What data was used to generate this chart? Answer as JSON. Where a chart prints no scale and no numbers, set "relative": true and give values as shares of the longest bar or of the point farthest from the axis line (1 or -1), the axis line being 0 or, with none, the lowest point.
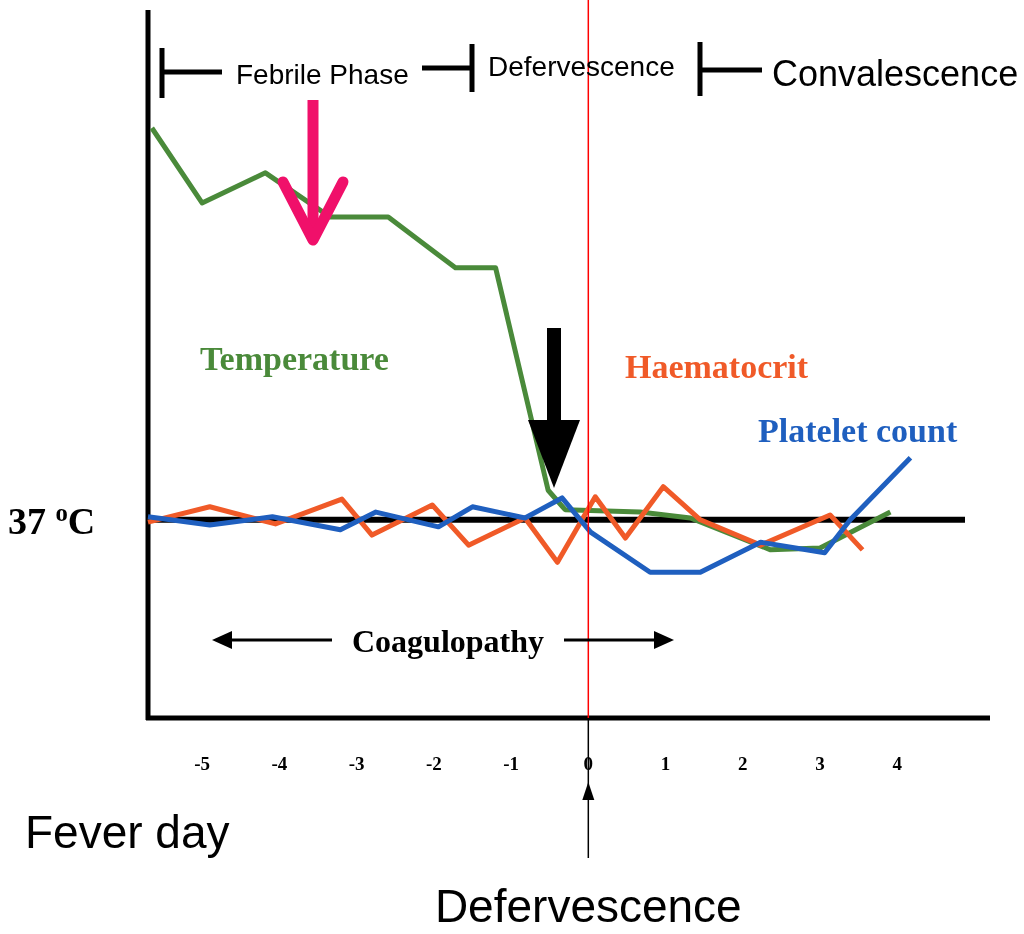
{
  "chart_data": {
    "type": "line",
    "relative": true,
    "xlabel": "Fever day",
    "xlim": [
      -5.7,
      5.2
    ],
    "xticks": [
      -5,
      -4,
      -3,
      -2,
      -1,
      0,
      1,
      2,
      3,
      4
    ],
    "tick_labels": "x",
    "grid": false,
    "marker": "none",
    "line_style": "solid",
    "series": [
      {
        "name": "Temperature",
        "color": "#4a8a3a",
        "x": [
          -5.65,
          -5.0,
          -4.18,
          -3.34,
          -2.59,
          -1.72,
          -1.2,
          -0.52,
          -0.3,
          0.67,
          1.32,
          2.36,
          3.0,
          3.91
        ],
        "values": [
          1.0,
          0.873,
          0.924,
          0.849,
          0.849,
          0.763,
          0.763,
          0.386,
          0.353,
          0.349,
          0.339,
          0.285,
          0.288,
          0.349
        ]
      },
      {
        "name": "Haematocrit",
        "color": "#f05a28",
        "x": [
          -5.7,
          -4.9,
          -4.05,
          -3.19,
          -2.8,
          -2.02,
          -1.55,
          -0.82,
          -0.4,
          0.09,
          0.48,
          0.97,
          1.45,
          2.23,
          3.13,
          3.55
        ],
        "values": [
          0.332,
          0.358,
          0.329,
          0.371,
          0.31,
          0.361,
          0.293,
          0.339,
          0.264,
          0.375,
          0.305,
          0.392,
          0.336,
          0.293,
          0.344,
          0.285
        ]
      },
      {
        "name": "Platelet count",
        "color": "#1f5fbf",
        "x": [
          -5.7,
          -4.9,
          -4.09,
          -3.21,
          -2.75,
          -1.94,
          -1.5,
          -0.82,
          -0.34,
          0.03,
          0.8,
          1.45,
          2.23,
          3.06,
          3.39,
          4.17
        ],
        "values": [
          0.341,
          0.327,
          0.341,
          0.319,
          0.349,
          0.324,
          0.358,
          0.339,
          0.373,
          0.315,
          0.247,
          0.247,
          0.298,
          0.28,
          0.336,
          0.441
        ]
      }
    ],
    "ref_lines": [
      {
        "axis": "y",
        "value": 0.336,
        "label": "37 $^{o}$C",
        "color": "#000000"
      },
      {
        "axis": "x",
        "value": 0,
        "label": "Defervescence",
        "color": "#ff0000"
      }
    ],
    "annotations": [
      "Febrile Phase",
      "Defervescence",
      "Convalescence",
      "Coagulopathy"
    ]
  }
}
